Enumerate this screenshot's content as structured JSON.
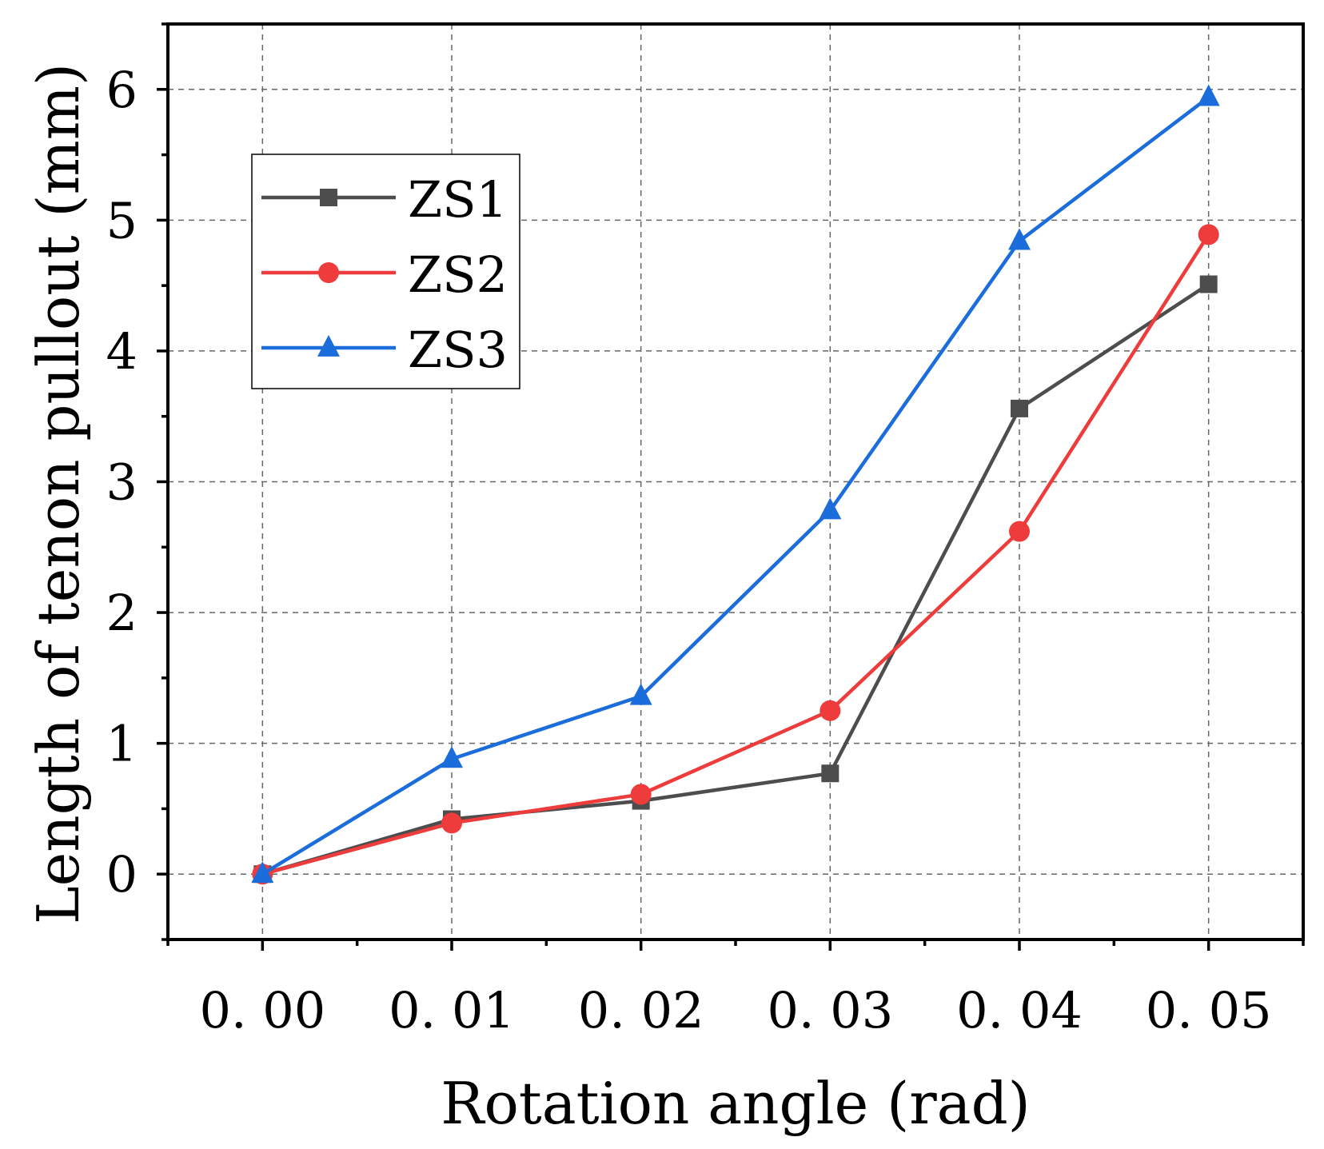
{
  "chart_data": {
    "type": "line",
    "title": "",
    "xlabel": "Rotation angle (rad)",
    "ylabel": "Length of tenon pullout (mm)",
    "x": [
      0.0,
      0.01,
      0.02,
      0.03,
      0.04,
      0.05
    ],
    "x_tick_labels": [
      "0. 00",
      "0. 01",
      "0. 02",
      "0. 03",
      "0. 04",
      "0. 05"
    ],
    "xlim": [
      -0.005,
      0.055
    ],
    "ylim": [
      -0.5,
      6.5
    ],
    "y_ticks": [
      0,
      1,
      2,
      3,
      4,
      5,
      6
    ],
    "y_tick_labels": [
      "0",
      "1",
      "2",
      "3",
      "4",
      "5",
      "6"
    ],
    "grid": true,
    "legend_position": "upper-left",
    "series": [
      {
        "name": "ZS1",
        "color": "#4d4d4d",
        "marker": "square",
        "values": [
          0.0,
          0.42,
          0.56,
          0.77,
          3.56,
          4.51
        ]
      },
      {
        "name": "ZS2",
        "color": "#ee3b3b",
        "marker": "circle",
        "values": [
          0.0,
          0.39,
          0.61,
          1.25,
          2.62,
          4.89
        ]
      },
      {
        "name": "ZS3",
        "color": "#1b6ddb",
        "marker": "triangle",
        "values": [
          0.0,
          0.88,
          1.36,
          2.78,
          4.84,
          5.94
        ]
      }
    ]
  }
}
